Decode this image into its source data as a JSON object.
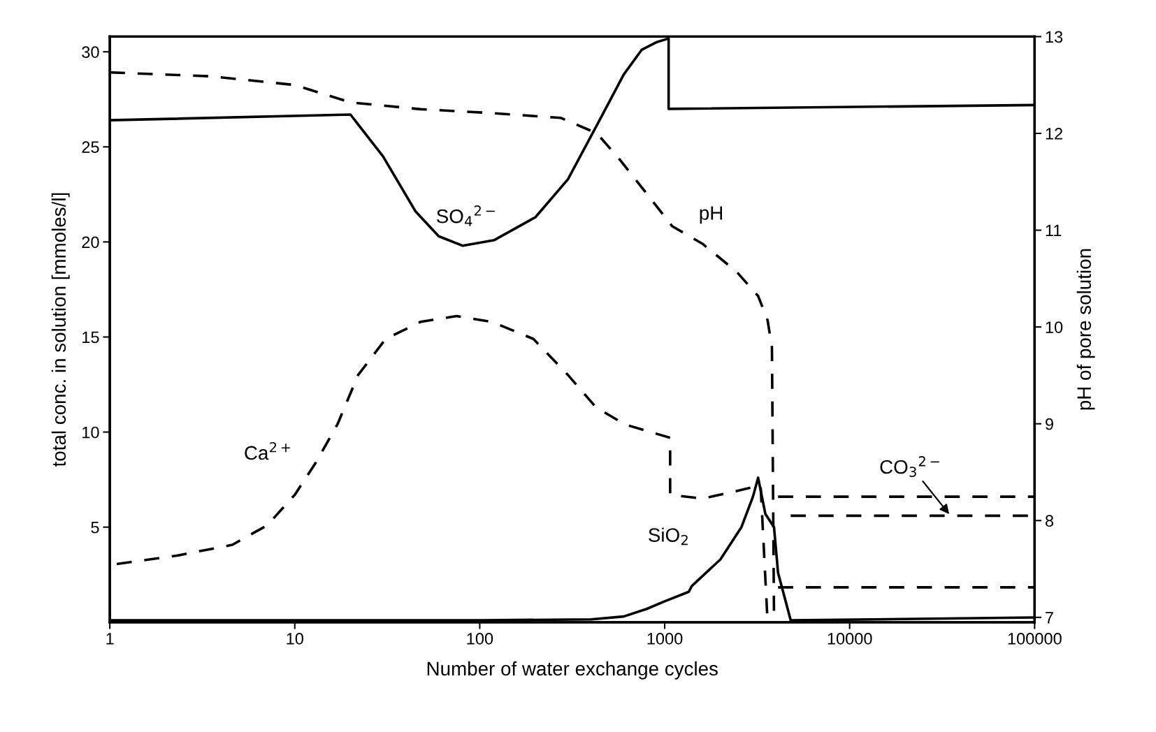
{
  "chart_data": {
    "type": "line",
    "xlabel": "Number of water exchange cycles",
    "ylabel": "total conc. in solution [mmoles/l]",
    "y2label": "pH of pore solution",
    "log": "x",
    "grid": false,
    "marker": "none",
    "xlim": [
      1,
      100000
    ],
    "xticks": [
      1,
      10,
      100,
      1000,
      10000,
      100000
    ],
    "ylim": [
      0,
      30.8
    ],
    "yticks": [
      5,
      10,
      15,
      20,
      25,
      30
    ],
    "y2lim": [
      6.95,
      13
    ],
    "y2ticks": [
      7,
      8,
      9,
      10,
      11,
      12,
      13
    ],
    "series": [
      {
        "name": "SO$_{4}$$^{2−}$",
        "color": "#000000",
        "line_style": "solid",
        "x": [
          1,
          20,
          30,
          45,
          60,
          81,
          120,
          200,
          300,
          450,
          600,
          750,
          900,
          1050,
          1050,
          100000
        ],
        "values": [
          26.4,
          26.7,
          24.5,
          21.6,
          20.3,
          19.8,
          20.1,
          21.3,
          23.3,
          26.5,
          28.8,
          30.1,
          30.5,
          30.7,
          27.0,
          27.2
        ]
      },
      {
        "name": "pH",
        "color": "#000000",
        "line_style": "dashed",
        "axis": "y2",
        "x": [
          1,
          3.5,
          10,
          20,
          48,
          116,
          275,
          430,
          560,
          790,
          1100,
          1600,
          2450,
          3200,
          3600,
          3800,
          3900,
          3950,
          4100,
          100000
        ],
        "values": [
          12.63,
          12.59,
          12.5,
          12.32,
          12.25,
          12.21,
          12.16,
          12.0,
          11.75,
          11.39,
          11.04,
          10.86,
          10.57,
          10.32,
          10.07,
          9.79,
          7.0,
          null,
          7.31,
          7.31
        ]
      },
      {
        "name": "Ca$^{2+}$",
        "color": "#000000",
        "line_style": "dashed",
        "x": [
          1.09,
          2.3,
          4.6,
          7.1,
          10,
          13,
          17,
          22,
          31,
          48,
          75,
          116,
          195,
          300,
          425,
          610,
          1070,
          1070,
          1600,
          2450,
          3300,
          3600,
          3800,
          4100,
          100000
        ],
        "values": [
          3.06,
          3.5,
          4.07,
          5.1,
          6.7,
          8.4,
          10.4,
          13.0,
          14.9,
          15.8,
          16.1,
          15.8,
          14.9,
          13.0,
          11.3,
          10.4,
          9.7,
          6.7,
          6.5,
          6.9,
          7.2,
          0,
          null,
          6.6,
          6.6
        ]
      },
      {
        "name": "SiO$_{2}$",
        "color": "#000000",
        "line_style": "solid",
        "x": [
          1,
          100,
          400,
          600,
          800,
          1000,
          1350,
          1400,
          2000,
          2600,
          3000,
          3200,
          3500,
          3900,
          4100,
          4800,
          100000
        ],
        "values": [
          0.1,
          0.1,
          0.15,
          0.3,
          0.7,
          1.1,
          1.6,
          1.9,
          3.3,
          5.0,
          6.6,
          7.6,
          5.7,
          5.0,
          2.6,
          0.1,
          0.25
        ]
      },
      {
        "name": "CO$_{3}$$^{2−}$",
        "color": "#000000",
        "line_style": "dashed",
        "x": [
          4800,
          100000
        ],
        "values": [
          5.6,
          5.6
        ]
      }
    ]
  }
}
